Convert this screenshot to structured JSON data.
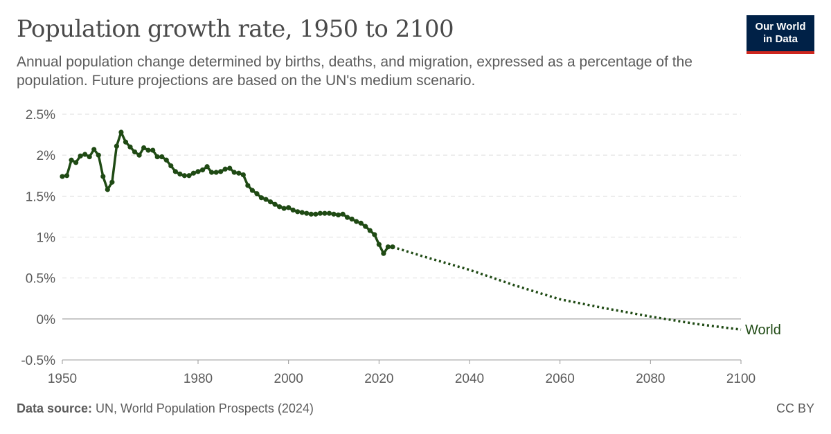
{
  "header": {
    "title": "Population growth rate, 1950 to 2100",
    "subtitle": "Annual population change determined by births, deaths, and migration, expressed as a percentage of the population. Future projections are based on the UN's medium scenario.",
    "logo_line1": "Our World",
    "logo_line2": "in Data"
  },
  "footer": {
    "source_label": "Data source:",
    "source_text": " UN, World Population Prospects (2024)",
    "license": "CC BY"
  },
  "colors": {
    "series": "#1f4a14",
    "grid": "#dddddd",
    "zero_line": "#999999",
    "logo_bg": "#002147",
    "logo_accent": "#ce261e"
  },
  "chart_data": {
    "type": "line",
    "xlim": [
      1950,
      2100
    ],
    "ylim": [
      -0.5,
      2.5
    ],
    "x_ticks": [
      1950,
      1980,
      2000,
      2020,
      2040,
      2060,
      2080,
      2100
    ],
    "y_ticks": [
      -0.5,
      0,
      0.5,
      1,
      1.5,
      2,
      2.5
    ],
    "y_tick_labels": [
      "-0.5%",
      "0%",
      "0.5%",
      "1%",
      "1.5%",
      "2%",
      "2.5%"
    ],
    "grid": "horizontal dashed",
    "series": [
      {
        "name": "World",
        "label_placement": "line end",
        "historical": {
          "x": [
            1950,
            1951,
            1952,
            1953,
            1954,
            1955,
            1956,
            1957,
            1958,
            1959,
            1960,
            1961,
            1962,
            1963,
            1964,
            1965,
            1966,
            1967,
            1968,
            1969,
            1970,
            1971,
            1972,
            1973,
            1974,
            1975,
            1976,
            1977,
            1978,
            1979,
            1980,
            1981,
            1982,
            1983,
            1984,
            1985,
            1986,
            1987,
            1988,
            1989,
            1990,
            1991,
            1992,
            1993,
            1994,
            1995,
            1996,
            1997,
            1998,
            1999,
            2000,
            2001,
            2002,
            2003,
            2004,
            2005,
            2006,
            2007,
            2008,
            2009,
            2010,
            2011,
            2012,
            2013,
            2014,
            2015,
            2016,
            2017,
            2018,
            2019,
            2020,
            2021,
            2022,
            2023
          ],
          "y": [
            1.74,
            1.75,
            1.94,
            1.91,
            1.99,
            2.01,
            1.98,
            2.07,
            2.0,
            1.74,
            1.58,
            1.67,
            2.11,
            2.28,
            2.16,
            2.1,
            2.04,
            2.0,
            2.09,
            2.06,
            2.06,
            1.98,
            1.98,
            1.94,
            1.87,
            1.8,
            1.77,
            1.75,
            1.75,
            1.78,
            1.8,
            1.82,
            1.86,
            1.79,
            1.79,
            1.8,
            1.83,
            1.84,
            1.79,
            1.78,
            1.76,
            1.63,
            1.57,
            1.53,
            1.48,
            1.46,
            1.43,
            1.4,
            1.37,
            1.35,
            1.36,
            1.33,
            1.31,
            1.3,
            1.29,
            1.28,
            1.28,
            1.29,
            1.29,
            1.29,
            1.28,
            1.27,
            1.28,
            1.24,
            1.22,
            1.19,
            1.17,
            1.13,
            1.08,
            1.03,
            0.91,
            0.8,
            0.88,
            0.88
          ]
        },
        "projection": {
          "x": [
            2023,
            2030,
            2040,
            2050,
            2060,
            2070,
            2080,
            2090,
            2100
          ],
          "y": [
            0.88,
            0.76,
            0.6,
            0.41,
            0.24,
            0.13,
            0.03,
            -0.06,
            -0.13
          ]
        }
      }
    ]
  }
}
